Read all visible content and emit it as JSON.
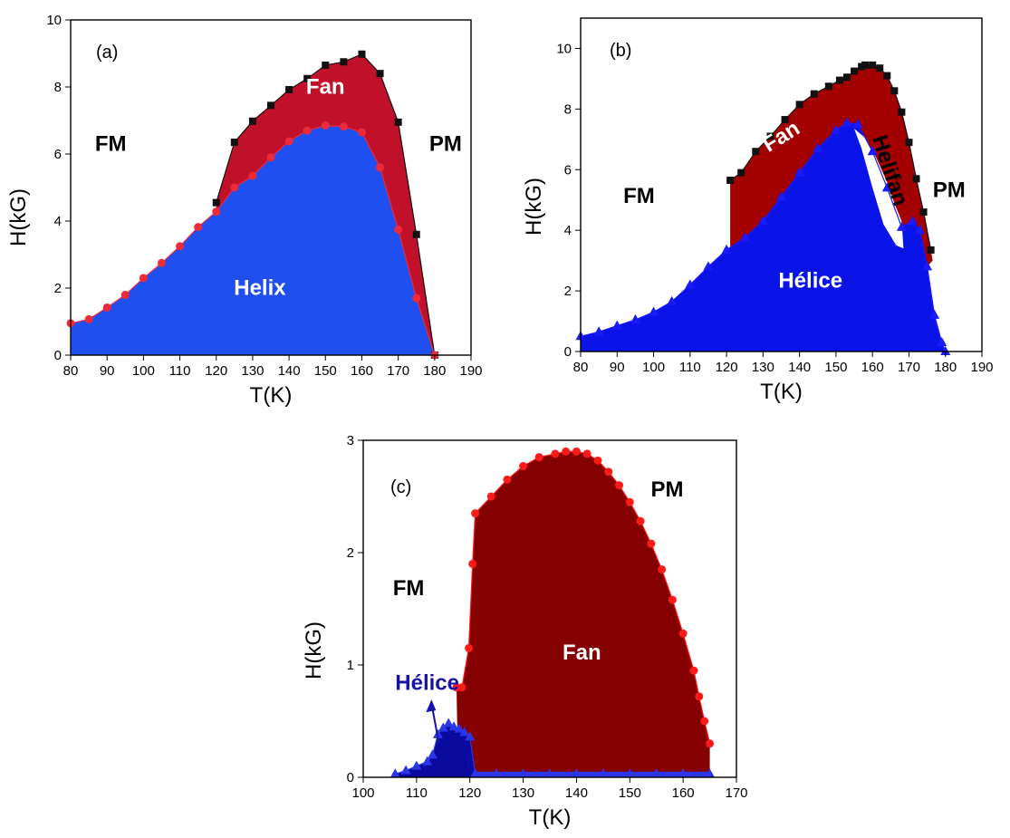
{
  "chart_data": [
    {
      "type": "area",
      "panel_label": "(a)",
      "xlabel": "T(K)",
      "ylabel": "H(kG)",
      "xlim": [
        80,
        190
      ],
      "ylim": [
        0,
        10
      ],
      "xticks": [
        80,
        90,
        100,
        110,
        120,
        130,
        140,
        150,
        160,
        170,
        180,
        190
      ],
      "yticks": [
        0,
        2,
        4,
        6,
        8,
        10
      ],
      "colors": {
        "upper_fill": "#c0102a",
        "lower_fill": "#1f4ff0",
        "upper_marker": "#111111",
        "lower_marker": "#ee2a3a"
      },
      "series": [
        {
          "marker": "square",
          "x": [
            120,
            125,
            130,
            135,
            140,
            145,
            150,
            155,
            160,
            165,
            170,
            175,
            180
          ],
          "y": [
            4.55,
            6.35,
            6.98,
            7.45,
            7.92,
            8.25,
            8.65,
            8.75,
            8.98,
            8.4,
            6.95,
            3.6,
            0.0
          ]
        },
        {
          "marker": "circle",
          "x": [
            80,
            85,
            90,
            95,
            100,
            105,
            110,
            115,
            120,
            125,
            130,
            135,
            140,
            145,
            150,
            155,
            160,
            165,
            170,
            175,
            180
          ],
          "y": [
            0.95,
            1.07,
            1.42,
            1.8,
            2.3,
            2.75,
            3.25,
            3.82,
            4.28,
            5.0,
            5.35,
            5.9,
            6.38,
            6.7,
            6.85,
            6.82,
            6.65,
            5.6,
            3.75,
            1.7,
            0.0
          ]
        }
      ],
      "annotations": [
        {
          "text": "FM",
          "x": 91,
          "y": 6.1,
          "color": "#000000"
        },
        {
          "text": "PM",
          "x": 183,
          "y": 6.1,
          "color": "#000000"
        },
        {
          "text": "Fan",
          "x": 150,
          "y": 7.8,
          "color": "#ffffff"
        },
        {
          "text": "Helix",
          "x": 132,
          "y": 1.8,
          "color": "#ffffff"
        }
      ]
    },
    {
      "type": "area",
      "panel_label": "(b)",
      "xlabel": "T(K)",
      "ylabel": "H(kG)",
      "xlim": [
        80,
        190
      ],
      "ylim": [
        0,
        11
      ],
      "xticks": [
        80,
        90,
        100,
        110,
        120,
        130,
        140,
        150,
        160,
        170,
        180,
        190
      ],
      "yticks": [
        0,
        2,
        4,
        6,
        8,
        10
      ],
      "colors": {
        "fan_fill": "#a30000",
        "helice_fill": "#0a14e8",
        "fan_marker": "#111111",
        "helice_marker": "#1a1aff"
      },
      "series": [
        {
          "marker": "square",
          "x": [
            121,
            124,
            128,
            132,
            136,
            140,
            144,
            148,
            151,
            153,
            155,
            157,
            158,
            160,
            162,
            164,
            166,
            168,
            170,
            172,
            174,
            176
          ],
          "y": [
            5.65,
            5.9,
            6.6,
            7.1,
            7.65,
            8.15,
            8.5,
            8.75,
            8.95,
            9.05,
            9.25,
            9.4,
            9.45,
            9.45,
            9.35,
            9.1,
            8.6,
            7.9,
            6.9,
            5.7,
            4.6,
            3.35
          ]
        },
        {
          "marker": "triangle",
          "x": [
            80,
            85,
            90,
            95,
            100,
            105,
            110,
            115,
            120,
            125,
            130,
            135,
            140,
            145,
            150,
            153,
            156,
            160,
            164,
            168,
            171,
            173,
            175,
            177,
            179,
            180
          ],
          "y": [
            0.5,
            0.65,
            0.85,
            1.05,
            1.3,
            1.65,
            2.2,
            2.8,
            3.35,
            3.75,
            4.3,
            5.1,
            5.9,
            6.7,
            7.3,
            7.55,
            7.5,
            6.6,
            5.4,
            4.1,
            4.3,
            4.0,
            2.8,
            1.2,
            0.3,
            0.0
          ]
        }
      ],
      "annotations": [
        {
          "text": "FM",
          "x": 96,
          "y": 4.9,
          "color": "#000000"
        },
        {
          "text": "PM",
          "x": 181,
          "y": 5.1,
          "color": "#000000"
        },
        {
          "text": "Fan",
          "x": 136,
          "y": 6.9,
          "color": "#ffffff"
        },
        {
          "text": "Helifan",
          "x": 163,
          "y": 5.9,
          "color": "#000000"
        },
        {
          "text": "Hélice",
          "x": 143,
          "y": 2.1,
          "color": "#ffffff"
        }
      ]
    },
    {
      "type": "area",
      "panel_label": "(c)",
      "xlabel": "T(K)",
      "ylabel": "H(kG)",
      "xlim": [
        100,
        170
      ],
      "ylim": [
        0,
        3
      ],
      "xticks": [
        100,
        110,
        120,
        130,
        140,
        150,
        160,
        170
      ],
      "yticks": [
        0,
        1,
        2,
        3
      ],
      "colors": {
        "fan_fill": "#850000",
        "fan_marker": "#ff1a1a",
        "helice_fill": "#0a0a9e",
        "helice_marker": "#2b36e8",
        "helice_label": "#1414a8"
      },
      "series": [
        {
          "marker": "circle",
          "x": [
            117.5,
            118.5,
            119.8,
            120.5,
            121,
            124,
            127,
            130,
            133,
            136,
            138,
            140,
            142,
            144,
            146,
            148,
            150,
            152,
            154,
            156,
            158,
            160,
            162,
            163,
            164,
            165
          ],
          "y": [
            0.8,
            0.8,
            1.15,
            1.9,
            2.35,
            2.5,
            2.65,
            2.77,
            2.85,
            2.88,
            2.9,
            2.9,
            2.88,
            2.82,
            2.72,
            2.6,
            2.45,
            2.28,
            2.08,
            1.85,
            1.58,
            1.28,
            0.95,
            0.72,
            0.5,
            0.3
          ]
        },
        {
          "marker": "triangle",
          "x": [
            106,
            108,
            110,
            112,
            113,
            114,
            115,
            116,
            117,
            118,
            119,
            120,
            121
          ],
          "y": [
            0.03,
            0.06,
            0.1,
            0.14,
            0.2,
            0.38,
            0.44,
            0.48,
            0.45,
            0.43,
            0.4,
            0.36,
            0.03
          ]
        },
        {
          "marker": "triangle",
          "x": [
            121,
            125,
            130,
            135,
            140,
            145,
            150,
            155,
            160,
            165
          ],
          "y": [
            0.03,
            0.03,
            0.03,
            0.03,
            0.03,
            0.03,
            0.03,
            0.03,
            0.03,
            0.03
          ]
        }
      ],
      "annotations": [
        {
          "text": "FM",
          "x": 108.5,
          "y": 1.62,
          "color": "#000000"
        },
        {
          "text": "PM",
          "x": 157,
          "y": 2.5,
          "color": "#000000"
        },
        {
          "text": "Fan",
          "x": 141,
          "y": 1.05,
          "color": "#ffffff"
        },
        {
          "text": "Hélice",
          "x": 112,
          "y": 0.78,
          "color": "#1414a8"
        }
      ]
    }
  ]
}
